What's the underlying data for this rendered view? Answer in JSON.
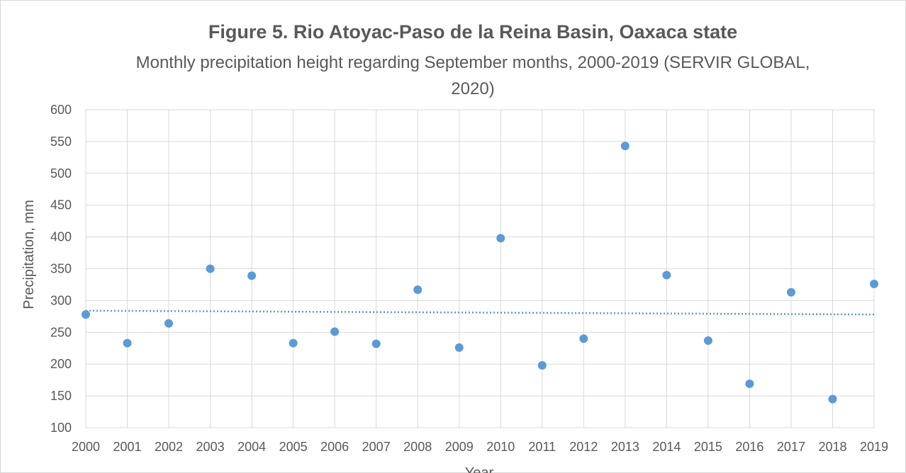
{
  "chart_data": {
    "type": "scatter",
    "title": "Figure 5.  Rio Atoyac-Paso de la Reina Basin, Oaxaca state",
    "subtitle": "Monthly precipitation height regarding September months, 2000-2019  (SERVIR GLOBAL, 2020)",
    "xlabel": "Year",
    "ylabel": "Precipitation, mm",
    "x": [
      2000,
      2001,
      2002,
      2003,
      2004,
      2005,
      2006,
      2007,
      2008,
      2009,
      2010,
      2011,
      2012,
      2013,
      2014,
      2015,
      2016,
      2017,
      2018,
      2019
    ],
    "series": [
      {
        "values": [
          278,
          233,
          264,
          350,
          339,
          233,
          251,
          232,
          317,
          226,
          398,
          198,
          240,
          543,
          340,
          237,
          169,
          313,
          145,
          326
        ]
      }
    ],
    "trendline": {
      "type": "linear",
      "style": "dotted",
      "start": [
        2000,
        284
      ],
      "end": [
        2019,
        278
      ]
    },
    "xlim": [
      2000,
      2019
    ],
    "ylim": [
      100,
      600
    ],
    "yticks": [
      100,
      150,
      200,
      250,
      300,
      350,
      400,
      450,
      500,
      550,
      600
    ],
    "xticks": [
      2000,
      2001,
      2002,
      2003,
      2004,
      2005,
      2006,
      2007,
      2008,
      2009,
      2010,
      2011,
      2012,
      2013,
      2014,
      2015,
      2016,
      2017,
      2018,
      2019
    ],
    "grid": true,
    "legend": "none",
    "colors": {
      "marker": "#5b9bd5",
      "gridline": "#d9d9d9",
      "text": "#595959"
    }
  }
}
